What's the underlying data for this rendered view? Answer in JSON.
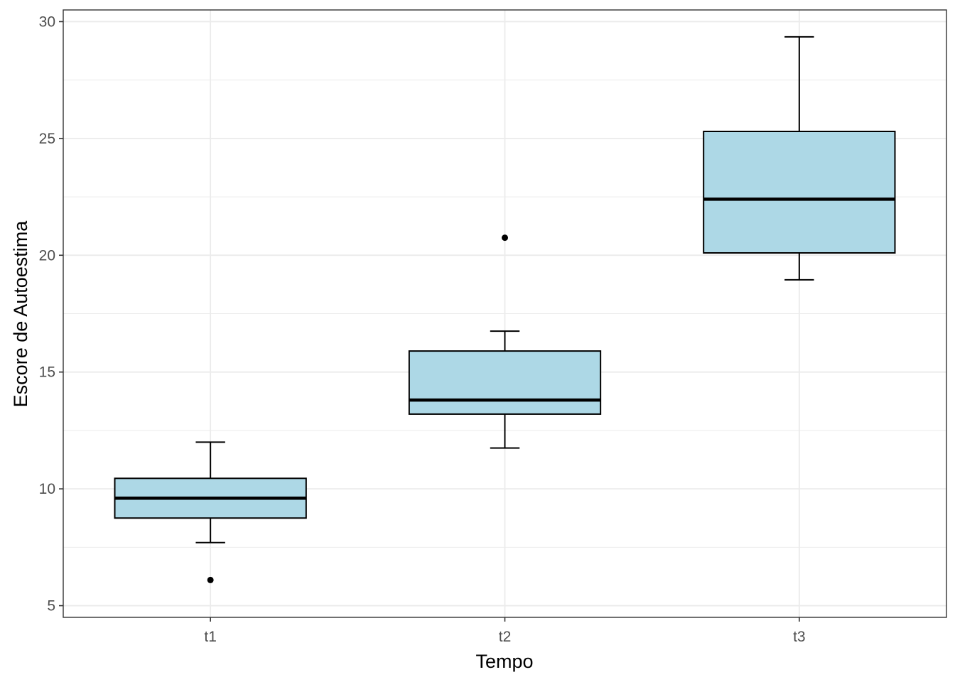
{
  "chart_data": {
    "type": "box",
    "title": "",
    "xlabel": "Tempo",
    "ylabel": "Escore de Autoestima",
    "categories": [
      "t1",
      "t2",
      "t3"
    ],
    "ylim": [
      4.5,
      30.5
    ],
    "yticks": [
      5,
      10,
      15,
      20,
      25,
      30
    ],
    "grid": true,
    "legend": "none",
    "box_fill": "#ADD8E6",
    "line_color": "#000000",
    "grid_color": "#EBEBEB",
    "boxes": [
      {
        "name": "t1",
        "whisker_low": 7.7,
        "q1": 8.75,
        "median": 9.6,
        "q3": 10.45,
        "whisker_high": 12.0,
        "outliers": [
          6.1
        ]
      },
      {
        "name": "t2",
        "whisker_low": 11.75,
        "q1": 13.2,
        "median": 13.8,
        "q3": 15.9,
        "whisker_high": 16.75,
        "outliers": [
          20.75
        ]
      },
      {
        "name": "t3",
        "whisker_low": 18.95,
        "q1": 20.1,
        "median": 22.4,
        "q3": 25.3,
        "whisker_high": 29.35,
        "outliers": []
      }
    ]
  }
}
